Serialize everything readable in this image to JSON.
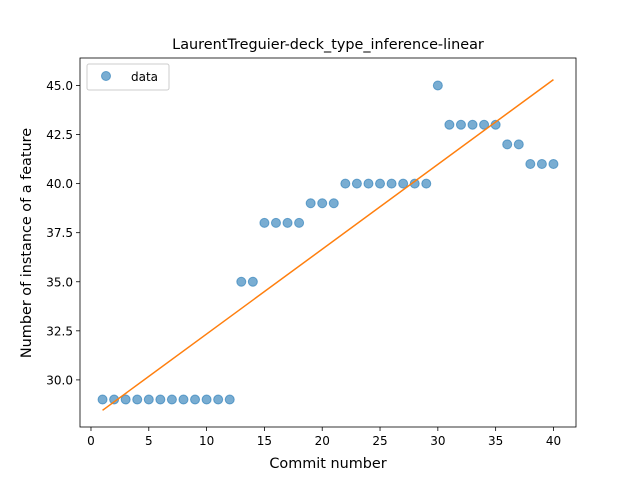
{
  "chart_data": {
    "type": "scatter",
    "title": "LaurentTreguier-deck_type_inference-linear",
    "xlabel": "Commit number",
    "ylabel": "Number of instance of a feature",
    "xlim": [
      -0.95,
      41.95
    ],
    "ylim": [
      27.6,
      46.4
    ],
    "xticks": [
      0,
      5,
      10,
      15,
      20,
      25,
      30,
      35,
      40
    ],
    "xtick_labels": [
      "0",
      "5",
      "10",
      "15",
      "20",
      "25",
      "30",
      "35",
      "40"
    ],
    "yticks": [
      30.0,
      32.5,
      35.0,
      37.5,
      40.0,
      42.5,
      45.0
    ],
    "ytick_labels": [
      "30.0",
      "32.5",
      "35.0",
      "37.5",
      "40.0",
      "42.5",
      "45.0"
    ],
    "legend": {
      "position": "top-left",
      "entries": [
        "data"
      ]
    },
    "grid": false,
    "series": [
      {
        "name": "data",
        "kind": "scatter",
        "color": "#1f77b4",
        "x": [
          1,
          2,
          3,
          4,
          5,
          6,
          7,
          8,
          9,
          10,
          11,
          12,
          13,
          14,
          15,
          16,
          17,
          18,
          19,
          20,
          21,
          22,
          23,
          24,
          25,
          26,
          27,
          28,
          29,
          30,
          31,
          32,
          33,
          34,
          35,
          36,
          37,
          38,
          39,
          40
        ],
        "y": [
          29,
          29,
          29,
          29,
          29,
          29,
          29,
          29,
          29,
          29,
          29,
          29,
          35,
          35,
          38,
          38,
          38,
          38,
          39,
          39,
          39,
          40,
          40,
          40,
          40,
          40,
          40,
          40,
          40,
          45,
          43,
          43,
          43,
          43,
          43,
          42,
          42,
          41,
          41,
          41
        ]
      },
      {
        "kind": "line",
        "color": "#ff7f0e",
        "x": [
          1,
          40
        ],
        "y": [
          28.45,
          45.3
        ]
      }
    ]
  }
}
